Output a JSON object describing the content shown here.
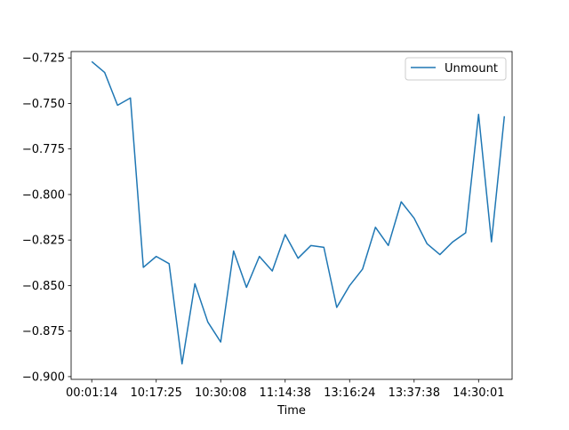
{
  "chart_data": {
    "type": "line",
    "title": "",
    "xlabel": "Time",
    "ylabel": "",
    "x_tick_labels": [
      "00:01:14",
      "10:17:25",
      "10:30:08",
      "11:14:38",
      "13:16:24",
      "13:37:38",
      "14:30:01"
    ],
    "x_tick_index": [
      0,
      5,
      10,
      15,
      20,
      25,
      30
    ],
    "y_ticks": [
      -0.725,
      -0.75,
      -0.775,
      -0.8,
      -0.825,
      -0.85,
      -0.875,
      -0.9
    ],
    "y_tick_labels": [
      "−0.725",
      "−0.750",
      "−0.775",
      "−0.800",
      "−0.825",
      "−0.850",
      "−0.875",
      "−0.900"
    ],
    "ylim": [
      -0.9015,
      -0.7215
    ],
    "xlim": [
      -1.6,
      32.6
    ],
    "grid": false,
    "legend_position": "upper right",
    "series": [
      {
        "name": "Unmount",
        "color": "#1f77b4",
        "values": [
          -0.727,
          -0.733,
          -0.751,
          -0.747,
          -0.84,
          -0.834,
          -0.838,
          -0.893,
          -0.849,
          -0.87,
          -0.881,
          -0.831,
          -0.851,
          -0.834,
          -0.842,
          -0.822,
          -0.835,
          -0.828,
          -0.829,
          -0.862,
          -0.85,
          -0.841,
          -0.818,
          -0.828,
          -0.804,
          -0.813,
          -0.827,
          -0.833,
          -0.826,
          -0.821,
          -0.756,
          -0.826,
          -0.757
        ]
      }
    ]
  }
}
